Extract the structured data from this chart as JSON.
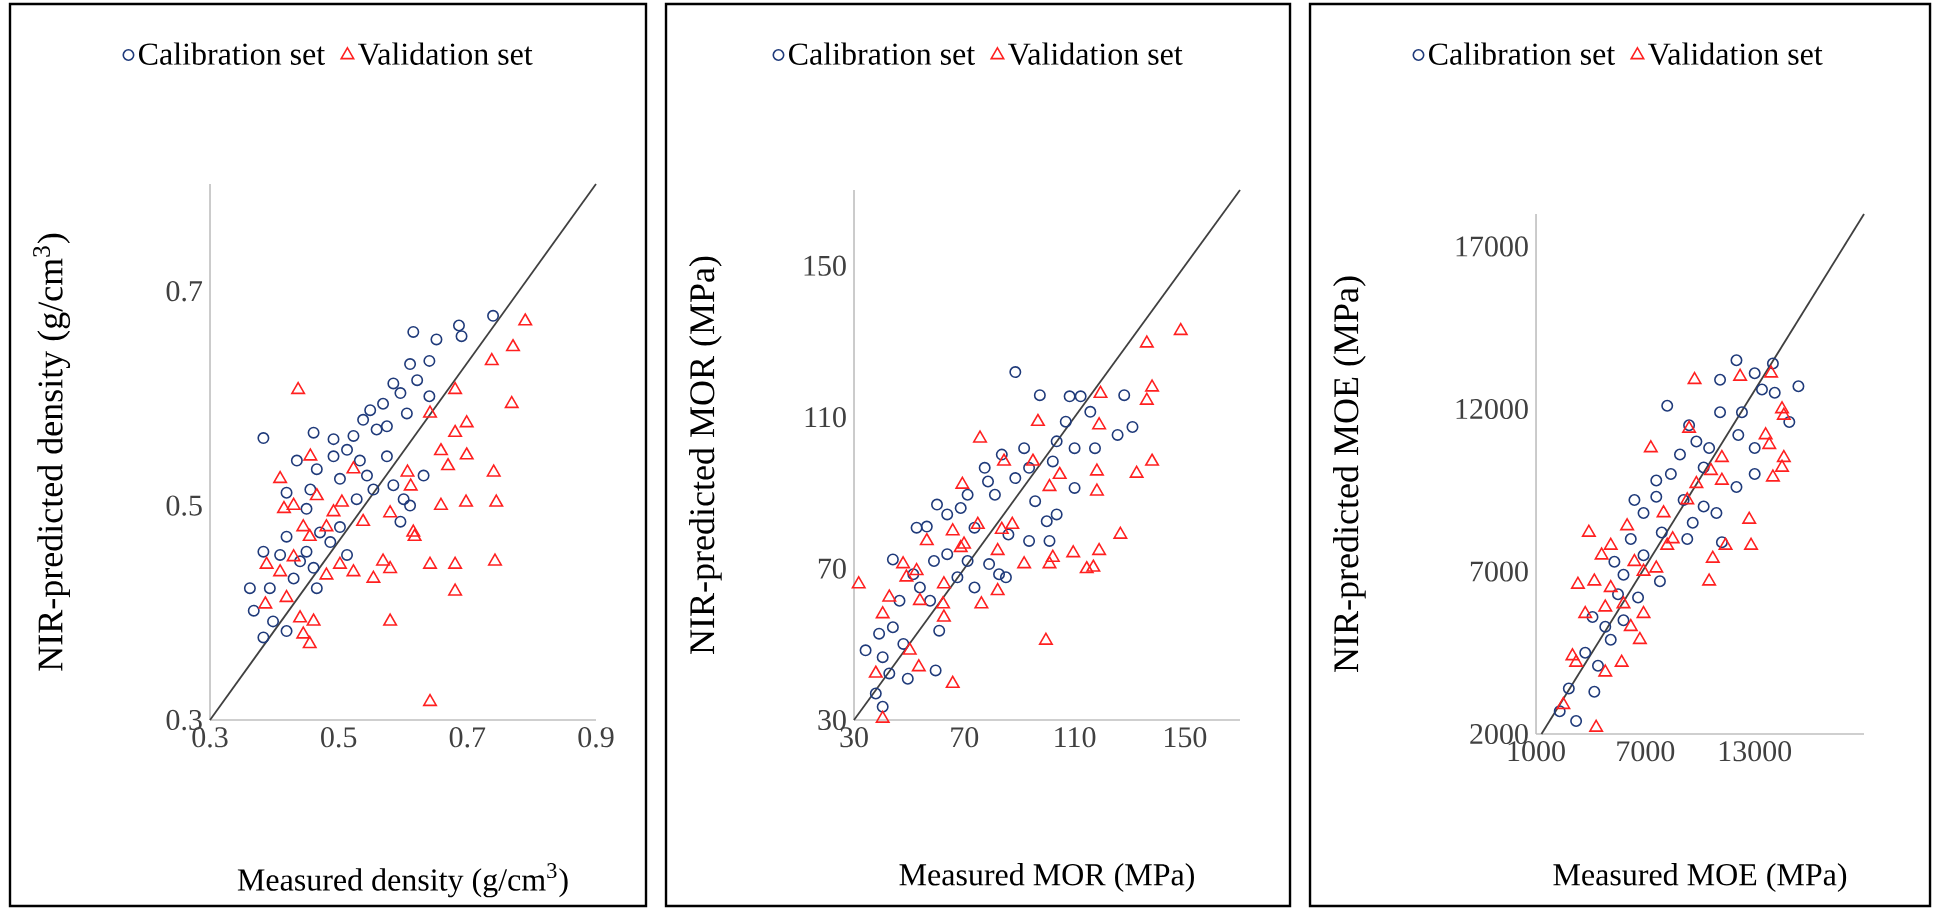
{
  "chart_data": [
    {
      "type": "scatter",
      "xlabel": "Measured density (g/cm$^{3}$)",
      "ylabel": "NIR-predicted density (g/cm$^{3}$)",
      "xlim": [
        0.3,
        0.9
      ],
      "ylim": [
        0.3,
        0.8
      ],
      "xticks": [
        0.3,
        0.5,
        0.7,
        0.9
      ],
      "yticks": [
        0.3,
        0.5,
        0.7
      ],
      "legend": "top",
      "series": [
        {
          "name": "Calibration set",
          "color": "#1f3a7a",
          "marker": "circle",
          "x": [
            0.74,
            0.687,
            0.616,
            0.652,
            0.691,
            0.641,
            0.611,
            0.622,
            0.585,
            0.596,
            0.569,
            0.641,
            0.606,
            0.549,
            0.538,
            0.575,
            0.559,
            0.523,
            0.383,
            0.461,
            0.492,
            0.513,
            0.492,
            0.533,
            0.575,
            0.435,
            0.466,
            0.544,
            0.502,
            0.585,
            0.632,
            0.601,
            0.611,
            0.554,
            0.456,
            0.528,
            0.419,
            0.596,
            0.45,
            0.502,
            0.471,
            0.419,
            0.487,
            0.383,
            0.45,
            0.409,
            0.461,
            0.43,
            0.362,
            0.393,
            0.466,
            0.368,
            0.398,
            0.383,
            0.419,
            0.44,
            0.513
          ],
          "values": [
            0.677,
            0.668,
            0.662,
            0.655,
            0.658,
            0.635,
            0.632,
            0.617,
            0.614,
            0.605,
            0.595,
            0.602,
            0.586,
            0.589,
            0.58,
            0.574,
            0.571,
            0.565,
            0.563,
            0.568,
            0.562,
            0.552,
            0.546,
            0.542,
            0.546,
            0.542,
            0.534,
            0.528,
            0.525,
            0.519,
            0.528,
            0.506,
            0.5,
            0.515,
            0.515,
            0.506,
            0.512,
            0.485,
            0.497,
            0.48,
            0.475,
            0.471,
            0.466,
            0.457,
            0.457,
            0.454,
            0.442,
            0.432,
            0.423,
            0.423,
            0.423,
            0.402,
            0.392,
            0.377,
            0.383,
            0.448,
            0.454
          ]
        },
        {
          "name": "Validation set",
          "color": "#ff2020",
          "marker": "triangle",
          "x": [
            0.437,
            0.79,
            0.771,
            0.738,
            0.769,
            0.681,
            0.642,
            0.699,
            0.681,
            0.659,
            0.699,
            0.67,
            0.741,
            0.607,
            0.612,
            0.659,
            0.698,
            0.745,
            0.58,
            0.616,
            0.618,
            0.538,
            0.569,
            0.58,
            0.642,
            0.681,
            0.743,
            0.681,
            0.58,
            0.642,
            0.554,
            0.523,
            0.502,
            0.456,
            0.409,
            0.466,
            0.505,
            0.492,
            0.43,
            0.415,
            0.445,
            0.455,
            0.43,
            0.388,
            0.409,
            0.386,
            0.419,
            0.44,
            0.461,
            0.445,
            0.455,
            0.481,
            0.523,
            0.481
          ],
          "values": [
            0.608,
            0.672,
            0.648,
            0.635,
            0.595,
            0.608,
            0.586,
            0.577,
            0.568,
            0.551,
            0.547,
            0.537,
            0.531,
            0.531,
            0.518,
            0.5,
            0.503,
            0.503,
            0.493,
            0.475,
            0.471,
            0.485,
            0.448,
            0.441,
            0.445,
            0.445,
            0.448,
            0.42,
            0.392,
            0.317,
            0.432,
            0.438,
            0.445,
            0.546,
            0.525,
            0.509,
            0.503,
            0.494,
            0.5,
            0.497,
            0.48,
            0.471,
            0.452,
            0.445,
            0.438,
            0.408,
            0.414,
            0.395,
            0.392,
            0.38,
            0.371,
            0.435,
            0.534,
            0.48
          ]
        },
        {
          "type": "line",
          "color": "#404040",
          "marker": "none",
          "x": [
            0.3,
            0.9
          ],
          "values": [
            0.3,
            0.8
          ]
        }
      ]
    },
    {
      "type": "scatter",
      "xlabel": "Measured MOR (MPa)",
      "ylabel": "NIR-predicted MOR (MPa)",
      "xlim": [
        30,
        170
      ],
      "ylim": [
        30,
        170
      ],
      "xticks": [
        30,
        70,
        110,
        150
      ],
      "yticks": [
        30,
        70,
        110,
        150
      ],
      "legend": "top",
      "series": [
        {
          "name": "Calibration set",
          "color": "#1f3a7a",
          "marker": "circle",
          "x": [
            88.5,
            97.4,
            112.2,
            108.2,
            128.0,
            131.0,
            125.6,
            115.7,
            106.8,
            103.5,
            110.0,
            117.4,
            91.7,
            83.6,
            77.4,
            93.5,
            102.1,
            88.5,
            110.0,
            78.6,
            71.2,
            81.1,
            95.7,
            103.5,
            99.9,
            68.7,
            60.1,
            52.7,
            56.4,
            73.7,
            86.0,
            93.5,
            100.9,
            63.8,
            71.2,
            79.0,
            82.6,
            85.1,
            67.5,
            59.0,
            44.1,
            51.5,
            53.9,
            73.7,
            46.5,
            57.6,
            60.9,
            44.1,
            34.2,
            39.1,
            47.9,
            40.4,
            42.8,
            49.5,
            59.6,
            37.9,
            40.4,
            63.8
          ],
          "values": [
            121.9,
            115.8,
            115.5,
            115.5,
            115.8,
            107.4,
            105.3,
            111.4,
            108.8,
            103.6,
            101.8,
            101.8,
            101.8,
            100.1,
            96.6,
            96.6,
            98.3,
            93.9,
            91.3,
            93.0,
            89.5,
            89.5,
            87.8,
            84.3,
            82.5,
            86.0,
            86.9,
            80.8,
            81.1,
            80.8,
            79.0,
            77.3,
            77.3,
            73.8,
            72.0,
            71.2,
            68.5,
            67.7,
            67.7,
            72.0,
            72.4,
            68.5,
            65.0,
            65.0,
            61.5,
            61.5,
            53.6,
            54.5,
            48.4,
            52.8,
            50.1,
            46.6,
            42.3,
            40.9,
            43.1,
            37.0,
            33.5,
            84.3
          ]
        },
        {
          "name": "Validation set",
          "color": "#ff2020",
          "marker": "triangle",
          "x": [
            148.5,
            136.2,
            138.1,
            136.2,
            119.4,
            118.9,
            96.7,
            138.1,
            132.5,
            118.1,
            118.1,
            75.7,
            94.9,
            84.4,
            104.6,
            100.9,
            69.3,
            126.6,
            118.9,
            116.8,
            114.4,
            102.1,
            100.9,
            91.7,
            99.6,
            83.6,
            87.4,
            82.1,
            74.9,
            69.9,
            68.7,
            65.8,
            62.6,
            76.2,
            82.1,
            56.4,
            47.8,
            52.7,
            49.0,
            53.9,
            62.3,
            62.6,
            42.8,
            40.4,
            31.7,
            53.5,
            37.9,
            40.4,
            65.8,
            50.2,
            109.5
          ],
          "values": [
            132.8,
            129.5,
            117.9,
            114.4,
            116.2,
            107.9,
            108.8,
            98.3,
            95.1,
            95.7,
            90.4,
            104.4,
            98.3,
            98.3,
            94.8,
            91.6,
            92.2,
            79.0,
            74.7,
            70.3,
            69.9,
            72.9,
            71.2,
            71.2,
            51.0,
            80.3,
            81.6,
            74.7,
            81.6,
            76.4,
            75.5,
            79.9,
            65.9,
            60.6,
            64.1,
            77.3,
            71.2,
            69.4,
            67.7,
            61.5,
            60.6,
            57.1,
            62.4,
            58.0,
            65.9,
            44.0,
            42.3,
            30.4,
            39.6,
            48.4,
            74.1
          ]
        },
        {
          "type": "line",
          "color": "#404040",
          "marker": "none",
          "x": [
            30,
            170
          ],
          "values": [
            30,
            170
          ]
        }
      ]
    },
    {
      "type": "scatter",
      "xlabel": "Measured MOE (MPa)",
      "ylabel": "NIR-predicted MOE (MPa)",
      "xlim": [
        1000,
        19000
      ],
      "ylim": [
        2000,
        18000
      ],
      "xticks": [
        1000,
        7000,
        13000
      ],
      "yticks": [
        2000,
        7000,
        12000,
        17000
      ],
      "legend": "top",
      "series": [
        {
          "name": "Calibration set",
          "color": "#1f3a7a",
          "marker": "circle",
          "x": [
            12000,
            14000,
            15400,
            13000,
            11100,
            14100,
            13400,
            8200,
            12300,
            11100,
            14900,
            9400,
            12100,
            10500,
            8900,
            13000,
            10200,
            8400,
            7600,
            12000,
            13000,
            6400,
            9100,
            6900,
            10200,
            10900,
            9600,
            7900,
            6200,
            9300,
            11200,
            6900,
            7800,
            5800,
            5500,
            6600,
            4100,
            4800,
            5800,
            5100,
            3700,
            4400,
            2800,
            4200,
            2300,
            3200,
            5300,
            7600,
            9800
          ],
          "values": [
            13500,
            13400,
            12700,
            13100,
            12900,
            12500,
            12600,
            12100,
            11900,
            11900,
            11600,
            11500,
            11200,
            10800,
            10600,
            10800,
            10200,
            10000,
            9800,
            9600,
            10000,
            9200,
            9200,
            8800,
            9000,
            8800,
            8500,
            8200,
            8000,
            8000,
            7900,
            7500,
            6700,
            6900,
            6300,
            6200,
            5600,
            5300,
            5500,
            4900,
            4500,
            4100,
            3400,
            3300,
            2700,
            2400,
            7300,
            9300,
            11000
          ]
        },
        {
          "name": "Validation set",
          "color": "#ff2020",
          "marker": "triangle",
          "x": [
            9700,
            12200,
            13900,
            14500,
            14600,
            13600,
            13800,
            14600,
            14500,
            14000,
            7300,
            9400,
            11200,
            10600,
            9800,
            11200,
            9300,
            8000,
            12700,
            12800,
            11400,
            10700,
            10500,
            8500,
            8200,
            7600,
            6900,
            6000,
            5100,
            3900,
            4600,
            3300,
            4200,
            5100,
            4800,
            3700,
            5800,
            6200,
            6700,
            6900,
            5700,
            4800,
            3000,
            3200,
            2500,
            4300,
            6400
          ],
          "values": [
            12900,
            13000,
            13100,
            12000,
            11800,
            11200,
            10900,
            10500,
            10200,
            9900,
            10800,
            11400,
            10500,
            10100,
            9700,
            9800,
            9200,
            8800,
            8600,
            7800,
            7800,
            7400,
            6700,
            8000,
            7800,
            7100,
            7000,
            8400,
            7800,
            8200,
            7500,
            6600,
            6700,
            6500,
            5900,
            5700,
            6000,
            5300,
            4900,
            5700,
            4200,
            3900,
            4400,
            4200,
            2900,
            2200,
            7300
          ]
        },
        {
          "type": "line",
          "color": "#404040",
          "marker": "none",
          "x": [
            1300,
            19000
          ],
          "values": [
            2000,
            18000
          ]
        }
      ]
    }
  ]
}
